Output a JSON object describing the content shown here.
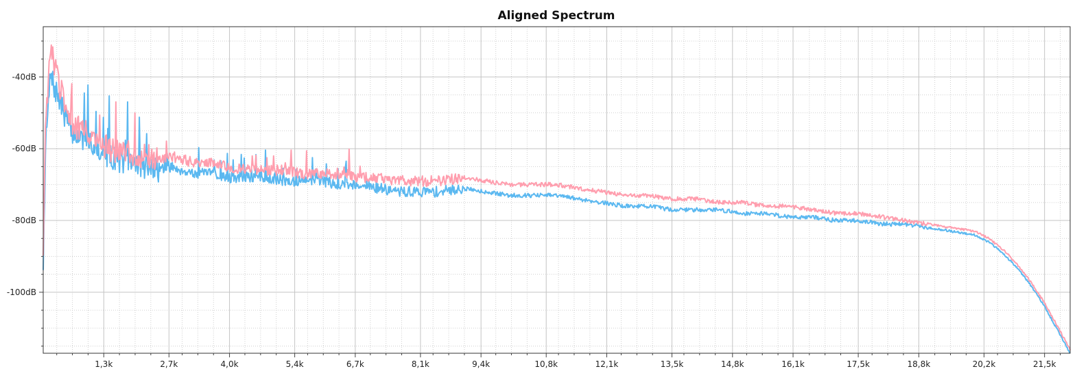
{
  "chart_data": {
    "type": "line",
    "title": "Aligned Spectrum",
    "xlabel": "",
    "ylabel": "",
    "xlim": [
      0,
      22050
    ],
    "ylim": [
      -117,
      -26
    ],
    "x_ticks": [
      {
        "value": 1300,
        "label": "1,3k"
      },
      {
        "value": 2700,
        "label": "2,7k"
      },
      {
        "value": 4000,
        "label": "4,0k"
      },
      {
        "value": 5400,
        "label": "5,4k"
      },
      {
        "value": 6700,
        "label": "6,7k"
      },
      {
        "value": 8100,
        "label": "8,1k"
      },
      {
        "value": 9400,
        "label": "9,4k"
      },
      {
        "value": 10800,
        "label": "10,8k"
      },
      {
        "value": 12100,
        "label": "12,1k"
      },
      {
        "value": 13500,
        "label": "13,5k"
      },
      {
        "value": 14800,
        "label": "14,8k"
      },
      {
        "value": 16100,
        "label": "16,1k"
      },
      {
        "value": 17500,
        "label": "17,5k"
      },
      {
        "value": 18800,
        "label": "18,8k"
      },
      {
        "value": 20200,
        "label": "20,2k"
      },
      {
        "value": 21500,
        "label": "21,5k"
      }
    ],
    "y_ticks": [
      {
        "value": -40,
        "label": "-40dB"
      },
      {
        "value": -60,
        "label": "-60dB"
      },
      {
        "value": -80,
        "label": "-80dB"
      },
      {
        "value": -100,
        "label": "-100dB"
      }
    ],
    "grid": true,
    "legend": "none",
    "series": [
      {
        "color": "#5bb8f0",
        "x": [
          0,
          50,
          150,
          300,
          450,
          600,
          800,
          1000,
          1200,
          1400,
          1600,
          1800,
          2000,
          2200,
          2500,
          2700,
          3000,
          3300,
          3600,
          4000,
          4400,
          4800,
          5200,
          5600,
          6000,
          6400,
          6800,
          7200,
          7600,
          8000,
          8500,
          9000,
          9500,
          10000,
          10500,
          11000,
          11500,
          12000,
          12500,
          13000,
          13500,
          14000,
          14500,
          15000,
          15500,
          16000,
          16500,
          17000,
          17500,
          18000,
          18500,
          19000,
          19500,
          20000,
          20300,
          20600,
          20900,
          21200,
          21500,
          21800,
          22050
        ],
        "y": [
          -92,
          -60,
          -40,
          -45,
          -50,
          -55,
          -57,
          -58,
          -60,
          -62,
          -63,
          -64,
          -64,
          -65,
          -66,
          -65,
          -66,
          -67,
          -67,
          -68,
          -68,
          -68,
          -69,
          -69,
          -69,
          -70,
          -70,
          -71,
          -72,
          -72,
          -72,
          -71,
          -72,
          -73,
          -73,
          -73,
          -74,
          -75,
          -76,
          -76,
          -77,
          -77,
          -77,
          -78,
          -78,
          -79,
          -79,
          -80,
          -80,
          -81,
          -81,
          -82,
          -83,
          -84,
          -86,
          -89,
          -93,
          -98,
          -104,
          -111,
          -117
        ]
      },
      {
        "color": "#ff9eae",
        "x": [
          0,
          50,
          150,
          300,
          450,
          600,
          800,
          1000,
          1200,
          1400,
          1600,
          1800,
          2000,
          2200,
          2500,
          2700,
          3000,
          3300,
          3600,
          4000,
          4400,
          4800,
          5200,
          5600,
          6000,
          6400,
          6800,
          7200,
          7600,
          8000,
          8500,
          9000,
          9500,
          10000,
          10500,
          11000,
          11500,
          12000,
          12500,
          13000,
          13500,
          14000,
          14500,
          15000,
          15500,
          16000,
          16500,
          17000,
          17500,
          18000,
          18500,
          19000,
          19500,
          20000,
          20300,
          20600,
          20900,
          21200,
          21500,
          21800,
          22050
        ],
        "y": [
          -88,
          -55,
          -32,
          -40,
          -47,
          -52,
          -55,
          -56,
          -58,
          -60,
          -61,
          -61,
          -62,
          -62,
          -63,
          -62,
          -63,
          -64,
          -64,
          -65,
          -66,
          -66,
          -66,
          -67,
          -67,
          -67,
          -68,
          -68,
          -69,
          -69,
          -69,
          -68,
          -69,
          -70,
          -70,
          -70,
          -71,
          -72,
          -73,
          -73,
          -74,
          -74,
          -75,
          -75,
          -76,
          -76,
          -77,
          -78,
          -78,
          -79,
          -80,
          -81,
          -82,
          -83,
          -85,
          -88,
          -92,
          -97,
          -103,
          -110,
          -116
        ]
      }
    ]
  }
}
